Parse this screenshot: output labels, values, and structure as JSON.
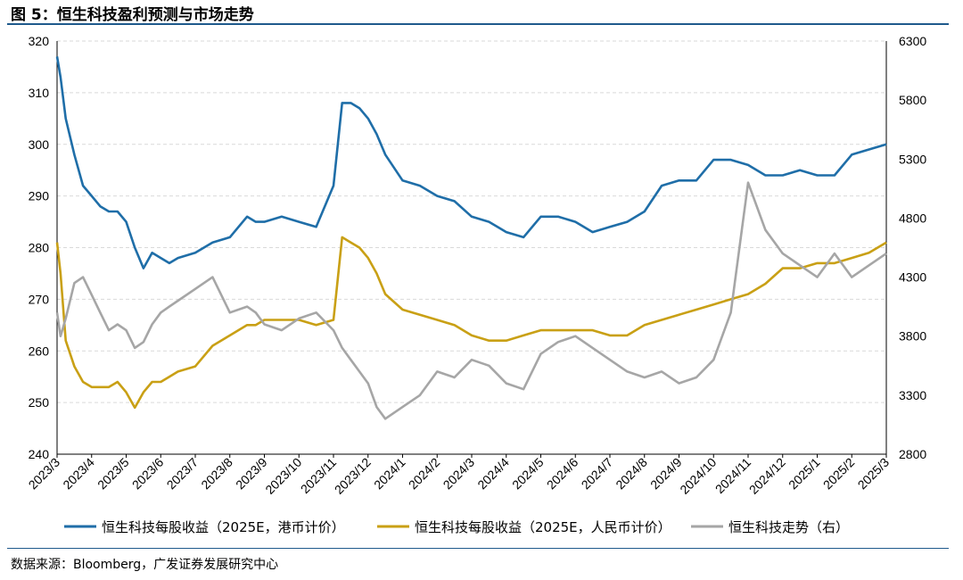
{
  "page": {
    "title": "图 5：恒生科技盈利预测与市场走势",
    "source": "数据来源：Bloomberg，广发证券发展研究中心"
  },
  "chart_data": {
    "type": "line",
    "title": "图 5：恒生科技盈利预测与市场走势",
    "x_labels": [
      "2023/3",
      "2023/4",
      "2023/5",
      "2023/6",
      "2023/7",
      "2023/8",
      "2023/9",
      "2023/10",
      "2023/11",
      "2023/12",
      "2024/1",
      "2024/2",
      "2024/3",
      "2024/4",
      "2024/5",
      "2024/6",
      "2024/7",
      "2024/8",
      "2024/9",
      "2024/10",
      "2024/11",
      "2024/12",
      "2025/1",
      "2025/2",
      "2025/3"
    ],
    "y_left": {
      "min": 240,
      "max": 320,
      "ticks": [
        240,
        250,
        260,
        270,
        280,
        290,
        300,
        310,
        320
      ]
    },
    "y_right": {
      "min": 2800,
      "max": 6300,
      "ticks": [
        2800,
        3300,
        3800,
        4300,
        4800,
        5300,
        5800,
        6300
      ]
    },
    "legend_position": "bottom",
    "grid": true,
    "series": [
      {
        "name": "恒生科技每股收益（2025E，港币计价）",
        "color": "#1f6ea8",
        "axis": "left",
        "x": [
          0,
          0.1,
          0.25,
          0.5,
          0.75,
          1,
          1.25,
          1.5,
          1.75,
          2,
          2.25,
          2.5,
          2.75,
          3,
          3.25,
          3.5,
          4,
          4.5,
          5,
          5.5,
          5.75,
          6,
          6.5,
          7,
          7.5,
          8,
          8.25,
          8.5,
          8.75,
          9,
          9.25,
          9.5,
          10,
          10.5,
          11,
          11.5,
          12,
          12.5,
          13,
          13.5,
          14,
          14.5,
          15,
          15.5,
          16,
          16.5,
          17,
          17.5,
          18,
          18.5,
          19,
          19.5,
          20,
          20.5,
          21,
          21.5,
          22,
          22.5,
          23,
          23.5,
          24
        ],
        "values": [
          317,
          313,
          305,
          298,
          292,
          290,
          288,
          287,
          287,
          285,
          280,
          276,
          279,
          278,
          277,
          278,
          279,
          281,
          282,
          286,
          285,
          285,
          286,
          285,
          284,
          292,
          308,
          308,
          307,
          305,
          302,
          298,
          293,
          292,
          290,
          289,
          286,
          285,
          283,
          282,
          286,
          286,
          285,
          283,
          284,
          285,
          287,
          292,
          293,
          293,
          297,
          297,
          296,
          294,
          294,
          295,
          294,
          294,
          298,
          299,
          300
        ]
      },
      {
        "name": "恒生科技每股收益（2025E，人民币计价）",
        "color": "#c9a015",
        "axis": "left",
        "x": [
          0,
          0.1,
          0.25,
          0.5,
          0.75,
          1,
          1.25,
          1.5,
          1.75,
          2,
          2.25,
          2.5,
          2.75,
          3,
          3.25,
          3.5,
          4,
          4.5,
          5,
          5.5,
          5.75,
          6,
          6.5,
          7,
          7.5,
          8,
          8.25,
          8.5,
          8.75,
          9,
          9.25,
          9.5,
          10,
          10.5,
          11,
          11.5,
          12,
          12.5,
          13,
          13.5,
          14,
          14.5,
          15,
          15.5,
          16,
          16.5,
          17,
          17.5,
          18,
          18.5,
          19,
          19.5,
          20,
          20.5,
          21,
          21.5,
          22,
          22.5,
          23,
          23.5,
          24
        ],
        "values": [
          281,
          275,
          262,
          257,
          254,
          253,
          253,
          253,
          254,
          252,
          249,
          252,
          254,
          254,
          255,
          256,
          257,
          261,
          263,
          265,
          265,
          266,
          266,
          266,
          265,
          266,
          282,
          281,
          280,
          278,
          275,
          271,
          268,
          267,
          266,
          265,
          263,
          262,
          262,
          263,
          264,
          264,
          264,
          264,
          263,
          263,
          265,
          266,
          267,
          268,
          269,
          270,
          271,
          273,
          276,
          276,
          277,
          277,
          278,
          279,
          281
        ]
      },
      {
        "name": "恒生科技走势（右）",
        "color": "#a6a6a6",
        "axis": "right",
        "x": [
          0,
          0.1,
          0.25,
          0.5,
          0.75,
          1,
          1.25,
          1.5,
          1.75,
          2,
          2.25,
          2.5,
          2.75,
          3,
          3.25,
          3.5,
          4,
          4.5,
          5,
          5.5,
          5.75,
          6,
          6.5,
          7,
          7.5,
          8,
          8.25,
          8.5,
          8.75,
          9,
          9.25,
          9.5,
          10,
          10.5,
          11,
          11.5,
          12,
          12.5,
          13,
          13.5,
          14,
          14.5,
          15,
          15.5,
          16,
          16.5,
          17,
          17.5,
          18,
          18.5,
          19,
          19.5,
          20,
          20.5,
          21,
          21.5,
          22,
          22.5,
          23,
          23.5,
          24
        ],
        "values": [
          4000,
          3800,
          3950,
          4250,
          4300,
          4150,
          4000,
          3850,
          3900,
          3850,
          3700,
          3750,
          3900,
          4000,
          4050,
          4100,
          4200,
          4300,
          4000,
          4050,
          4000,
          3900,
          3850,
          3950,
          4000,
          3850,
          3700,
          3600,
          3500,
          3400,
          3200,
          3100,
          3200,
          3300,
          3500,
          3450,
          3600,
          3550,
          3400,
          3350,
          3650,
          3750,
          3800,
          3700,
          3600,
          3500,
          3450,
          3500,
          3400,
          3450,
          3600,
          4000,
          5100,
          4700,
          4500,
          4400,
          4300,
          4500,
          4300,
          4400,
          4500
        ]
      }
    ]
  }
}
